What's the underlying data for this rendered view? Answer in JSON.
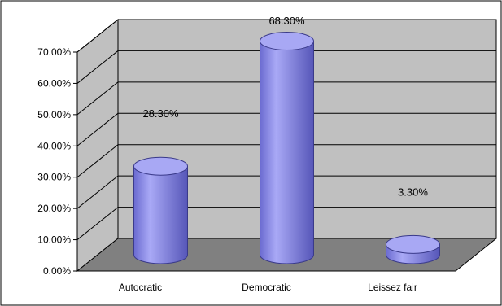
{
  "chart_data": {
    "type": "bar",
    "style": "3d-cylinder",
    "categories": [
      "Autocratic",
      "Democratic",
      "Leissez fair"
    ],
    "values": [
      28.3,
      68.3,
      3.3
    ],
    "data_labels": [
      "28.30%",
      "68.30%",
      "3.30%"
    ],
    "y_ticks": [
      0,
      10,
      20,
      30,
      40,
      50,
      60,
      70
    ],
    "y_tick_labels": [
      "0.00%",
      "10.00%",
      "20.00%",
      "30.00%",
      "40.00%",
      "50.00%",
      "60.00%",
      "70.00%"
    ],
    "ylim": [
      0,
      70
    ],
    "grid": true,
    "legend": "none",
    "colors": {
      "bar": "#8a8ae8",
      "bar_top": "#a8a8f4",
      "wall": "#c0c0c0",
      "floor": "#808080",
      "grid": "#000000"
    }
  }
}
